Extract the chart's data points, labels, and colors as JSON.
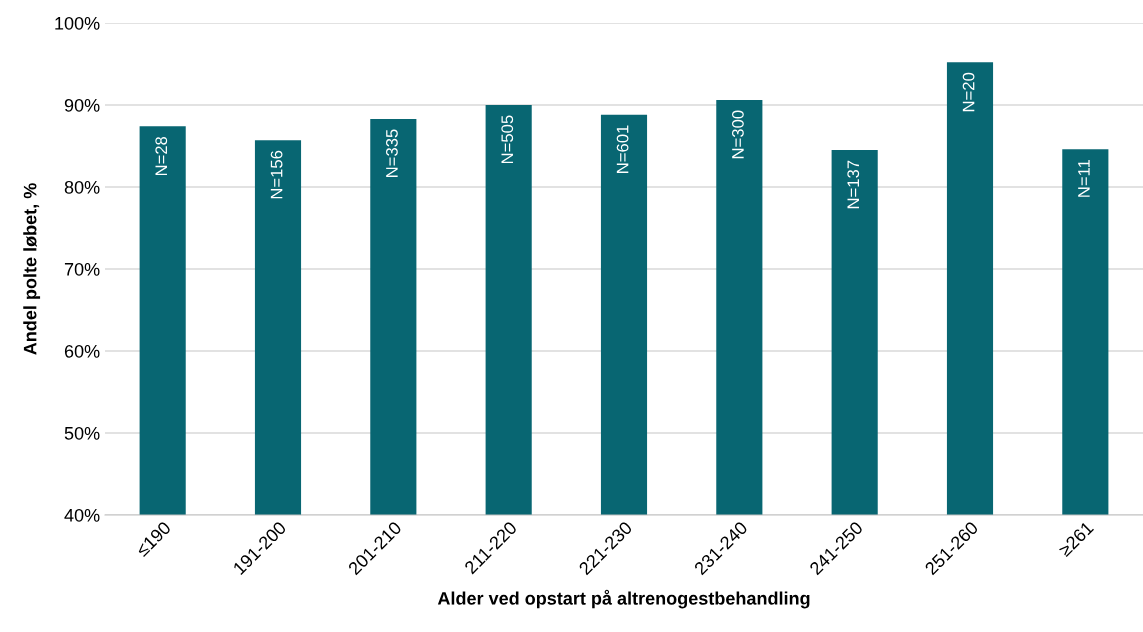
{
  "chart_data": {
    "type": "bar",
    "xlabel": "Alder ved opstart på altrenogestbehandling",
    "ylabel": "Andel polte løbet, %",
    "categories": [
      "≤190",
      "191-200",
      "201-210",
      "211-220",
      "221-230",
      "231-240",
      "241-250",
      "251-260",
      "≥261"
    ],
    "values": [
      87.4,
      85.7,
      88.3,
      90.0,
      88.8,
      90.6,
      84.5,
      95.2,
      84.6
    ],
    "annotations": [
      {
        "text": "N=28",
        "x": "≤190",
        "y": 87.4
      },
      {
        "text": "N=156",
        "x": "191-200",
        "y": 85.7
      },
      {
        "text": "N=335",
        "x": "201-210",
        "y": 88.3
      },
      {
        "text": "N=505",
        "x": "211-220",
        "y": 90.0
      },
      {
        "text": "N=601",
        "x": "221-230",
        "y": 88.8
      },
      {
        "text": "N=300",
        "x": "231-240",
        "y": 90.6
      },
      {
        "text": "N=137",
        "x": "241-250",
        "y": 84.5
      },
      {
        "text": "N=20",
        "x": "251-260",
        "y": 95.2
      },
      {
        "text": "N=11",
        "x": "≥261",
        "y": 84.6
      }
    ],
    "color": "#086672",
    "ylim": [
      40,
      100
    ],
    "yticks": [
      {
        "value": 40,
        "label": "40%"
      },
      {
        "value": 50,
        "label": "50%"
      },
      {
        "value": 60,
        "label": "60%"
      },
      {
        "value": 70,
        "label": "70%"
      },
      {
        "value": 80,
        "label": "80%"
      },
      {
        "value": 90,
        "label": "90%"
      },
      {
        "value": 100,
        "label": "100%"
      }
    ],
    "grid": "y",
    "legend": false
  }
}
